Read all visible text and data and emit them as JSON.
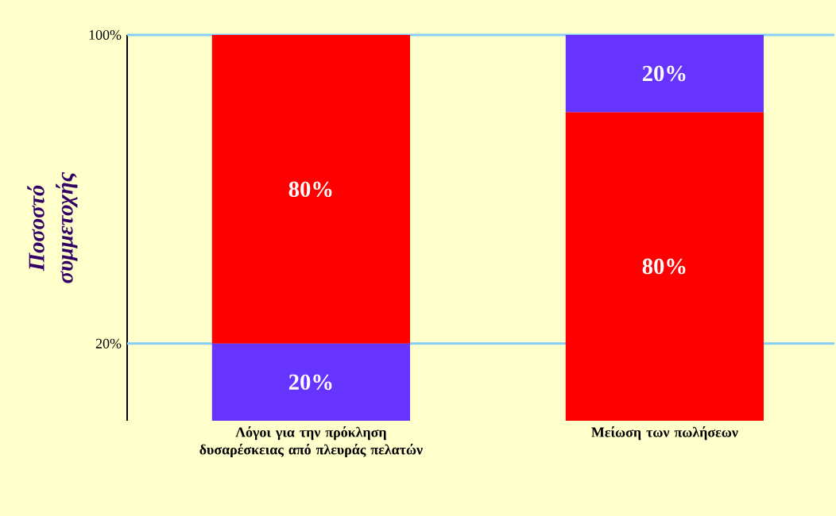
{
  "chart_data": {
    "type": "bar",
    "stacked": true,
    "ylabel": "Ποσοστό συμμετοχής",
    "categories": [
      "Λόγοι για την πρόκληση δυσαρέσκειας από πλευράς πελατών",
      "Μείωση των πωλήσεων"
    ],
    "series": [
      {
        "colors": [
          "#6633ff",
          "#ff0000"
        ],
        "values": [
          20,
          80
        ],
        "value_labels": [
          "20%",
          "80%"
        ]
      },
      {
        "colors": [
          "#ff0000",
          "#6633ff"
        ],
        "values": [
          80,
          20
        ],
        "value_labels": [
          "80%",
          "20%"
        ]
      }
    ],
    "ylim": [
      0,
      100
    ],
    "yticks": [
      {
        "value": 20,
        "label": "20%"
      },
      {
        "value": 100,
        "label": "100%"
      }
    ],
    "ref_lines": [
      {
        "axis": "y",
        "value": 20,
        "color": "#87cefa"
      },
      {
        "axis": "y",
        "value": 100,
        "color": "#87cefa"
      }
    ]
  }
}
